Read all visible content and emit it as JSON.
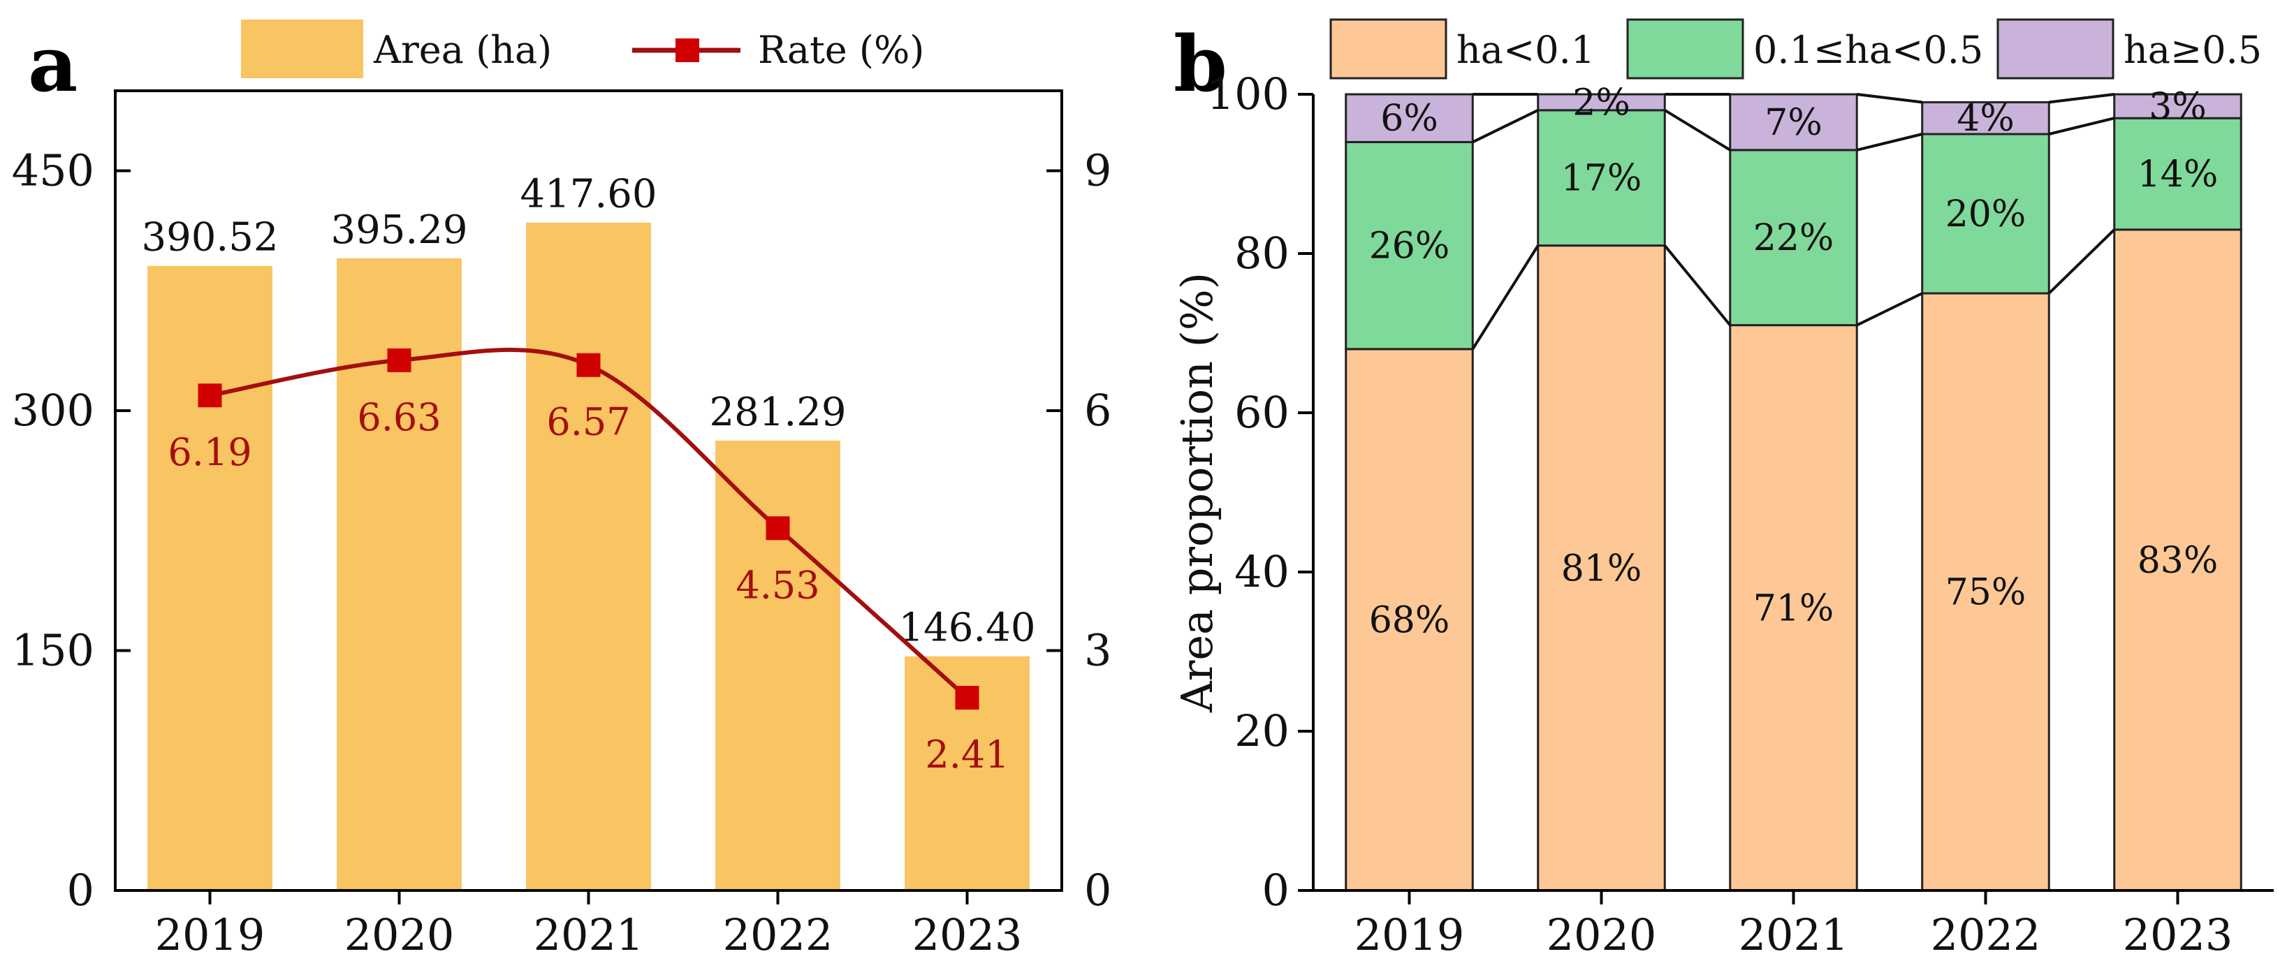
{
  "chart_data": [
    {
      "panel": "a",
      "type": "bar",
      "categories": [
        "2019",
        "2020",
        "2021",
        "2022",
        "2023"
      ],
      "series": [
        {
          "name": "Area (ha)",
          "axis": "left",
          "kind": "bar",
          "color": "#f9c462",
          "values": [
            390.52,
            395.29,
            417.6,
            281.29,
            146.4
          ],
          "labels": [
            "390.52",
            "395.29",
            "417.60",
            "281.29",
            "146.40"
          ]
        },
        {
          "name": "Rate (%)",
          "axis": "right",
          "kind": "line",
          "color": "#a30f0f",
          "marker_color": "#d10000",
          "values": [
            6.19,
            6.63,
            6.57,
            4.53,
            2.41
          ],
          "labels": [
            "6.19",
            "6.63",
            "6.57",
            "4.53",
            "2.41"
          ]
        }
      ],
      "ylim_left": [
        0,
        500
      ],
      "yticks_left": [
        "0",
        "150",
        "300",
        "450"
      ],
      "ylim_right": [
        0,
        10
      ],
      "yticks_right": [
        "0",
        "3",
        "6",
        "9"
      ],
      "legend_position": "top"
    },
    {
      "panel": "b",
      "type": "bar",
      "stacked": true,
      "categories": [
        "2019",
        "2020",
        "2021",
        "2022",
        "2023"
      ],
      "series": [
        {
          "name": "ha<0.1",
          "color": "#fdc895",
          "values": [
            68,
            81,
            71,
            75,
            83
          ],
          "labels": [
            "68%",
            "81%",
            "71%",
            "75%",
            "83%"
          ]
        },
        {
          "name": "0.1≤ha<0.5",
          "color": "#7fd99a",
          "values": [
            26,
            17,
            22,
            20,
            14
          ],
          "labels": [
            "26%",
            "17%",
            "22%",
            "20%",
            "14%"
          ]
        },
        {
          "name": "ha≥0.5",
          "color": "#c9b3da",
          "values": [
            6,
            2,
            7,
            4,
            3
          ],
          "labels": [
            "6%",
            "2%",
            "7%",
            "4%",
            "3%"
          ]
        }
      ],
      "ylabel": "Area proportion (%)",
      "ylim": [
        0,
        100
      ],
      "yticks": [
        "0",
        "20",
        "40",
        "60",
        "80",
        "100"
      ],
      "legend_position": "top"
    }
  ]
}
